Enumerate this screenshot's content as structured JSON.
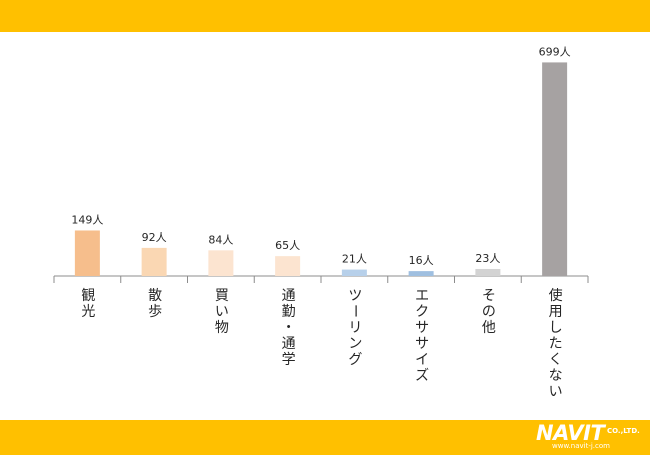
{
  "chart_data": {
    "type": "bar",
    "categories": [
      "観光",
      "散歩",
      "買い物",
      "通勤・通学",
      "ツーリング",
      "エクササイズ",
      "その他",
      "使用したくない"
    ],
    "values": [
      149,
      92,
      84,
      65,
      21,
      16,
      23,
      699
    ],
    "data_labels": [
      "149人",
      "92人",
      "84人",
      "65人",
      "21人",
      "16人",
      "23人",
      "699人"
    ],
    "unit": "人",
    "colors": [
      "#f6be8c",
      "#fad7b3",
      "#fce4d0",
      "#fce4d0",
      "#b7d0ea",
      "#9fbfe0",
      "#d3d3d3",
      "#a6a2a2"
    ],
    "title": "",
    "xlabel": "",
    "ylabel": "",
    "ylim": [
      0,
      720
    ],
    "grid": false,
    "legend": "none",
    "category_label_orientation": "vertical"
  },
  "header": {
    "band_color": "#ffc000"
  },
  "footer": {
    "band_color": "#ffc000",
    "logo": {
      "wordmark": "NAVIT",
      "suffix": "CO.,LTD.",
      "url": "www.navit-j.com"
    }
  }
}
